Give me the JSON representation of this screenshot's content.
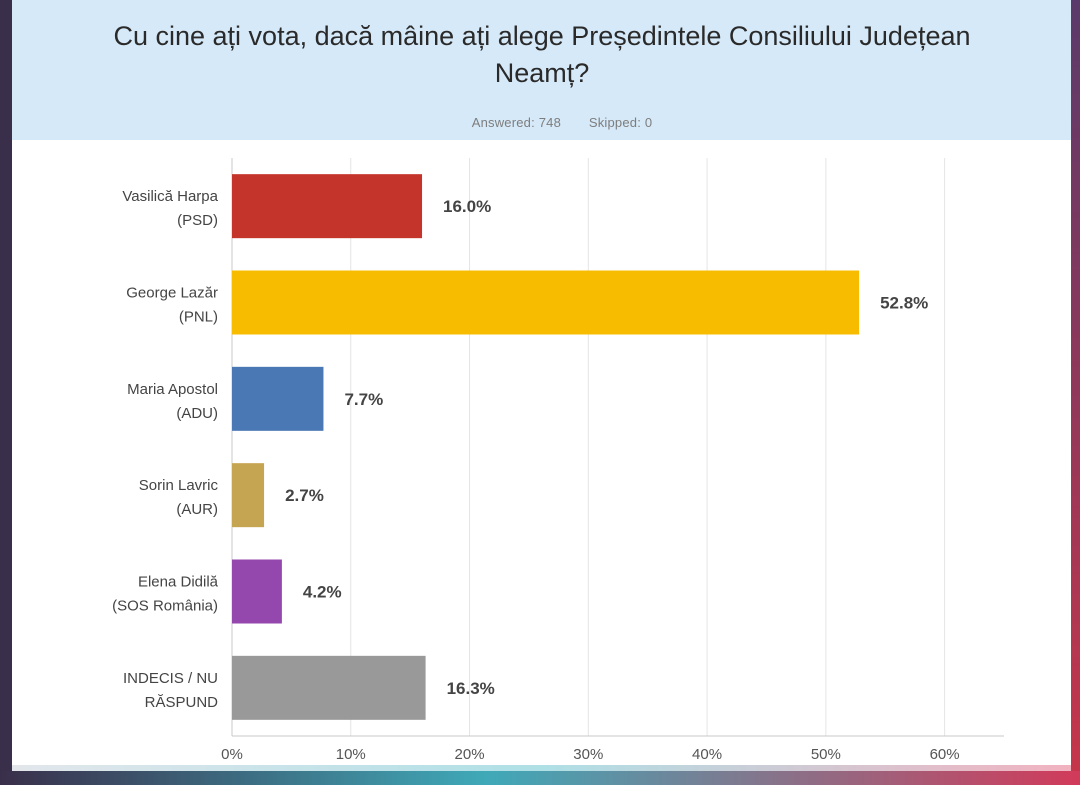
{
  "chart_data": {
    "type": "bar",
    "orientation": "horizontal",
    "title": "Cu cine ați vota, dacă mâine ați alege Președintele Consiliului Județean Neamț?",
    "summary": {
      "answered": "Answered: 748",
      "skipped": "Skipped: 0"
    },
    "categories": [
      {
        "line1": "Vasilică Harpa",
        "line2": "(PSD)"
      },
      {
        "line1": "George Lazăr",
        "line2": "(PNL)"
      },
      {
        "line1": "Maria Apostol",
        "line2": "(ADU)"
      },
      {
        "line1": "Sorin Lavric",
        "line2": "(AUR)"
      },
      {
        "line1": "Elena Didilă",
        "line2": "(SOS România)"
      },
      {
        "line1": "INDECIS / NU",
        "line2": "RĂSPUND"
      }
    ],
    "values": [
      16.0,
      52.8,
      7.7,
      2.7,
      4.2,
      16.3
    ],
    "value_labels": [
      "16.0%",
      "52.8%",
      "7.7%",
      "2.7%",
      "4.2%",
      "16.3%"
    ],
    "colors": [
      "#c4342a",
      "#f7bc00",
      "#4a78b4",
      "#c6a552",
      "#9447ad",
      "#999999"
    ],
    "xlim": [
      0,
      65
    ],
    "xticks": [
      0,
      10,
      20,
      30,
      40,
      50,
      60
    ],
    "xtick_labels": [
      "0%",
      "10%",
      "20%",
      "30%",
      "40%",
      "50%",
      "60%"
    ],
    "grid": true
  }
}
